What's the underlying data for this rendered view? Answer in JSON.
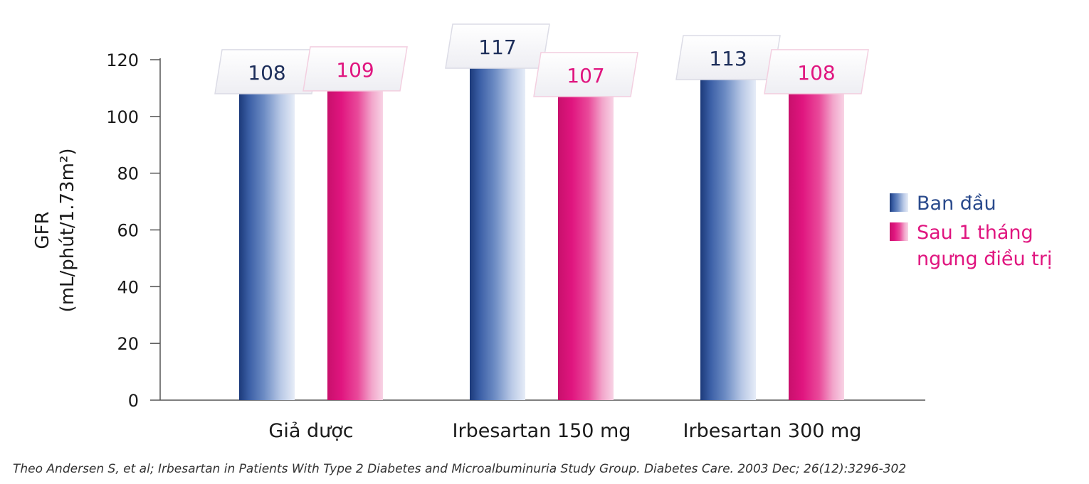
{
  "chart_data": {
    "type": "bar",
    "categories": [
      "Giả dược",
      "Irbesartan 150 mg",
      "Irbesartan 300 mg"
    ],
    "series": [
      {
        "name": "Ban đầu",
        "values": [
          108,
          117,
          113
        ],
        "color": "#2a4a8c"
      },
      {
        "name": "Sau 1 tháng ngưng điều trị",
        "name_lines": [
          "Sau 1 tháng",
          "ngưng điều trị"
        ],
        "values": [
          109,
          107,
          108
        ],
        "color": "#e0157f"
      }
    ],
    "ylabel_lines": [
      "GFR",
      "(mL/phút/1.73m²)"
    ],
    "xlabel": "",
    "ylim": [
      0,
      120
    ],
    "yticks": [
      0,
      20,
      40,
      60,
      80,
      100,
      120
    ],
    "grid": false,
    "legend_position": "right"
  },
  "citation": "Theo Andersen S, et al; Irbesartan in Patients With Type 2 Diabetes and Microalbuminuria Study Group. Diabetes Care. 2003 Dec; 26(12):3296-302"
}
